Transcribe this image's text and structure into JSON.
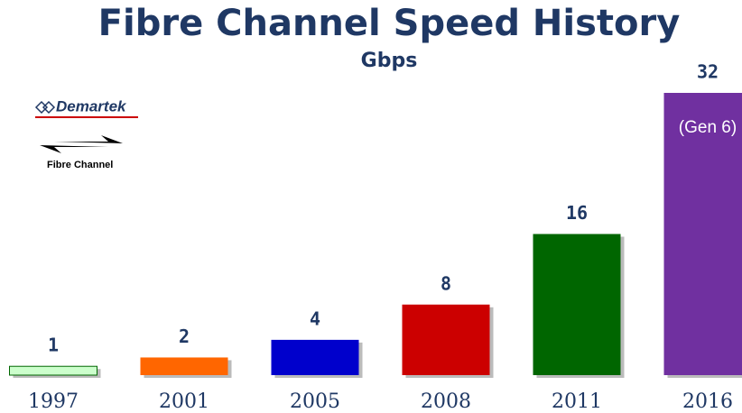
{
  "chart_data": {
    "type": "bar",
    "title": "Fibre Channel Speed History",
    "subtitle": "Gbps",
    "categories": [
      "1997",
      "2001",
      "2005",
      "2008",
      "2011",
      "2016"
    ],
    "values": [
      1,
      2,
      4,
      8,
      16,
      32
    ],
    "colors": [
      "#ccffcc",
      "#ff6600",
      "#0000cc",
      "#cc0000",
      "#006600",
      "#7030a0"
    ],
    "ylim": [
      0,
      32
    ],
    "annotation": "(Gen 6)"
  },
  "logos": {
    "company": "Demartek",
    "product": "Fibre Channel"
  }
}
